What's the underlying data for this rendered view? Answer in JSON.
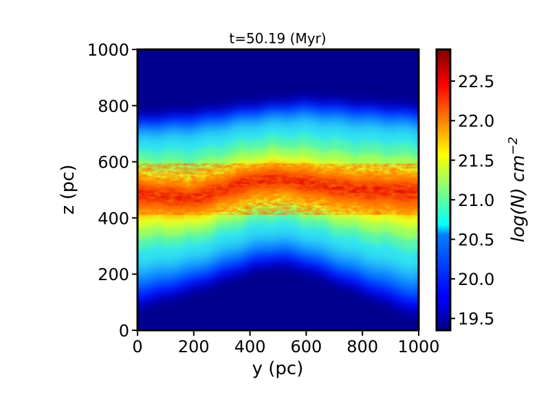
{
  "chart_data": {
    "type": "heatmap",
    "title": "t=50.19 (Myr)",
    "xlabel": "y (pc)",
    "ylabel": "z (pc)",
    "xlim": [
      0,
      1000
    ],
    "ylim": [
      0,
      1000
    ],
    "xticks": [
      0,
      200,
      400,
      600,
      800,
      1000
    ],
    "yticks": [
      0,
      200,
      400,
      600,
      800,
      1000
    ],
    "xtick_labels": [
      "0",
      "200",
      "400",
      "600",
      "800",
      "1000"
    ],
    "ytick_labels": [
      "0",
      "200",
      "400",
      "600",
      "800",
      "1000"
    ],
    "colormap": "jet",
    "colorbar": {
      "label": "log(N) cm^-2",
      "label_base": "log(N) cm",
      "label_exp": "−2",
      "range": [
        19.35,
        22.9
      ],
      "ticks": [
        19.5,
        20.0,
        20.5,
        21.0,
        21.5,
        22.0,
        22.5
      ],
      "tick_labels": [
        "19.5",
        "20.0",
        "20.5",
        "21.0",
        "21.5",
        "22.0",
        "22.5"
      ]
    },
    "field_description_profile": {
      "midplane_z_at_y": {
        "0": 490,
        "100": 480,
        "200": 470,
        "300": 500,
        "400": 530,
        "500": 540,
        "600": 525,
        "700": 510,
        "800": 500,
        "900": 500,
        "1000": 495
      },
      "upper_edge_z_at_y": {
        "0": 760,
        "200": 775,
        "400": 800,
        "500": 810,
        "600": 820,
        "800": 805,
        "1000": 790
      },
      "lower_edge_z_at_y": {
        "0": 90,
        "200": 150,
        "400": 220,
        "500": 240,
        "600": 220,
        "800": 140,
        "1000": 60
      },
      "peak_value": 22.9,
      "background_value": 19.4
    }
  }
}
